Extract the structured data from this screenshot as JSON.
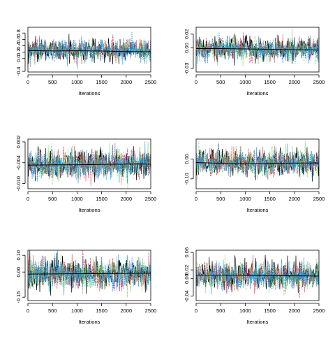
{
  "palette": {
    "chains": [
      "#000000",
      "#DF536B",
      "#61D04F",
      "#2297E6"
    ],
    "smooth": "#000000",
    "axis": "#000000"
  },
  "chart_data": [
    {
      "type": "line",
      "xlabel": "Iterations",
      "xlim": [
        0,
        2500
      ],
      "xticks": [
        0,
        500,
        1000,
        1500,
        2000,
        2500
      ],
      "ylim": [
        -0.42,
        0.98
      ],
      "yticks": [
        -0.4,
        0.0,
        0.2,
        0.4,
        0.6,
        0.8
      ],
      "ytick_labels": [
        "-0.4",
        "0.0",
        "0.2",
        "0.4",
        "0.6",
        "0.8"
      ],
      "series": [
        {
          "values": {
            "mean": 0.26,
            "spread": 0.17
          }
        },
        {
          "values": {
            "mean": 0.26,
            "spread": 0.17
          }
        },
        {
          "values": {
            "mean": 0.26,
            "spread": 0.17
          }
        },
        {
          "values": {
            "mean": 0.26,
            "spread": 0.17
          }
        }
      ],
      "smooth_line": {
        "x": [
          0,
          500,
          1000,
          1500,
          2000,
          2500
        ],
        "y": [
          0.25,
          0.24,
          0.245,
          0.235,
          0.22,
          0.215
        ]
      }
    },
    {
      "type": "line",
      "xlabel": "Iterations",
      "xlim": [
        0,
        2500
      ],
      "xticks": [
        0,
        500,
        1000,
        1500,
        2000,
        2500
      ],
      "ylim": [
        -0.035,
        0.03
      ],
      "yticks": [
        -0.03,
        0.0,
        0.02
      ],
      "ytick_labels": [
        "-0.03",
        "0.00",
        "0.02"
      ],
      "series": [
        {
          "values": {
            "mean": -0.002,
            "spread": 0.0085
          }
        },
        {
          "values": {
            "mean": -0.002,
            "spread": 0.0085
          }
        },
        {
          "values": {
            "mean": -0.002,
            "spread": 0.0085
          }
        },
        {
          "values": {
            "mean": -0.002,
            "spread": 0.0085
          }
        }
      ],
      "smooth_line": {
        "x": [
          0,
          500,
          1000,
          1500,
          2000,
          2500
        ],
        "y": [
          -0.001,
          -0.001,
          -0.0015,
          -0.002,
          -0.0025,
          -0.003
        ]
      }
    },
    {
      "type": "line",
      "xlabel": "Iterations",
      "xlim": [
        0,
        2500
      ],
      "xticks": [
        0,
        500,
        1000,
        1500,
        2000,
        2500
      ],
      "ylim": [
        -0.0115,
        0.0028
      ],
      "yticks": [
        -0.01,
        -0.004,
        0.002
      ],
      "ytick_labels": [
        "-0.010",
        "-0.004",
        "0.002"
      ],
      "series": [
        {
          "values": {
            "mean": -0.0045,
            "spread": 0.0021
          }
        },
        {
          "values": {
            "mean": -0.0045,
            "spread": 0.0021
          }
        },
        {
          "values": {
            "mean": -0.0045,
            "spread": 0.0021
          }
        },
        {
          "values": {
            "mean": -0.0045,
            "spread": 0.0021
          }
        }
      ],
      "smooth_line": {
        "x": [
          0,
          500,
          1000,
          1500,
          2000,
          2500
        ],
        "y": [
          -0.0047,
          -0.0046,
          -0.0046,
          -0.0045,
          -0.0044,
          -0.0044
        ]
      }
    },
    {
      "type": "line",
      "xlabel": "Iterations",
      "xlim": [
        0,
        2500
      ],
      "xticks": [
        0,
        500,
        1000,
        1500,
        2000,
        2500
      ],
      "ylim": [
        -0.15,
        0.1
      ],
      "yticks": [
        -0.1,
        0.0
      ],
      "ytick_labels": [
        "-0.10",
        "0.00"
      ],
      "series": [
        {
          "values": {
            "mean": -0.02,
            "spread": 0.033
          }
        },
        {
          "values": {
            "mean": -0.02,
            "spread": 0.033
          }
        },
        {
          "values": {
            "mean": -0.02,
            "spread": 0.033
          }
        },
        {
          "values": {
            "mean": -0.02,
            "spread": 0.033
          }
        }
      ],
      "smooth_line": {
        "x": [
          0,
          500,
          1000,
          1500,
          2000,
          2500
        ],
        "y": [
          -0.018,
          -0.022,
          -0.024,
          -0.022,
          -0.021,
          -0.02
        ]
      }
    },
    {
      "type": "line",
      "xlabel": "Iterations",
      "xlim": [
        0,
        2500
      ],
      "xticks": [
        0,
        500,
        1000,
        1500,
        2000,
        2500
      ],
      "ylim": [
        -0.17,
        0.13
      ],
      "yticks": [
        -0.15,
        0.0,
        0.1
      ],
      "ytick_labels": [
        "-0.15",
        "0.00",
        "0.10"
      ],
      "series": [
        {
          "values": {
            "mean": -0.01,
            "spread": 0.045
          }
        },
        {
          "values": {
            "mean": -0.01,
            "spread": 0.045
          }
        },
        {
          "values": {
            "mean": -0.01,
            "spread": 0.045
          }
        },
        {
          "values": {
            "mean": -0.01,
            "spread": 0.045
          }
        }
      ],
      "smooth_line": {
        "x": [
          0,
          500,
          1000,
          1500,
          2000,
          2500
        ],
        "y": [
          -0.012,
          -0.011,
          -0.01,
          -0.009,
          -0.008,
          -0.007
        ]
      }
    },
    {
      "type": "line",
      "xlabel": "Iterations",
      "xlim": [
        0,
        2500
      ],
      "xticks": [
        0,
        500,
        1000,
        1500,
        2000,
        2500
      ],
      "ylim": [
        -0.05,
        0.065
      ],
      "yticks": [
        -0.04,
        0.0,
        0.02,
        0.06
      ],
      "ytick_labels": [
        "-0.04",
        "0.00",
        "0.02",
        "0.06"
      ],
      "series": [
        {
          "values": {
            "mean": 0.007,
            "spread": 0.016
          }
        },
        {
          "values": {
            "mean": 0.007,
            "spread": 0.016
          }
        },
        {
          "values": {
            "mean": 0.007,
            "spread": 0.016
          }
        },
        {
          "values": {
            "mean": 0.007,
            "spread": 0.016
          }
        }
      ],
      "smooth_line": {
        "x": [
          0,
          500,
          1000,
          1500,
          2000,
          2500
        ],
        "y": [
          0.008,
          0.008,
          0.0075,
          0.007,
          0.0065,
          0.006
        ]
      }
    }
  ]
}
